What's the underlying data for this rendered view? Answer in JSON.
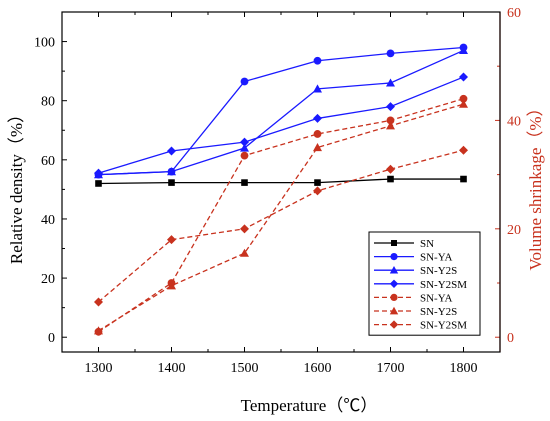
{
  "chart_data": {
    "type": "line",
    "title": "",
    "xlabel": "Temperature（℃）",
    "ylabel_left": "Relative density（%）",
    "ylabel_right": "Volume shrinkage（%）",
    "x": [
      1300,
      1400,
      1500,
      1600,
      1700,
      1800
    ],
    "xlim": [
      1250,
      1850
    ],
    "ylim_left": [
      -5,
      110
    ],
    "ylim_right": [
      -2.727,
      60
    ],
    "xticks": [
      "1300",
      "1400",
      "1500",
      "1600",
      "1700",
      "1800"
    ],
    "yticks_left": [
      "0",
      "20",
      "40",
      "60",
      "80",
      "100"
    ],
    "yticks_right": [
      "0",
      "20",
      "40",
      "60"
    ],
    "grid": false,
    "legend_position": "lower-right",
    "colors": {
      "black": "#000000",
      "blue": "#1a1aff",
      "red": "#c8321e"
    },
    "series": [
      {
        "name": "SN",
        "axis": "left",
        "color": "#000000",
        "marker": "square",
        "dashed": false,
        "values": [
          52,
          52.3,
          52.3,
          52.3,
          53.5,
          53.5
        ]
      },
      {
        "name": "SN-YA",
        "axis": "left",
        "color": "#1a1aff",
        "marker": "circle",
        "dashed": false,
        "values": [
          55,
          56,
          86.5,
          93.5,
          96,
          98
        ]
      },
      {
        "name": "SN-Y2S",
        "axis": "left",
        "color": "#1a1aff",
        "marker": "triangle",
        "dashed": false,
        "values": [
          55,
          56,
          64,
          84,
          86,
          97
        ]
      },
      {
        "name": "SN-Y2SM",
        "axis": "left",
        "color": "#1a1aff",
        "marker": "diamond",
        "dashed": false,
        "values": [
          55.5,
          63,
          66,
          74,
          78,
          88
        ]
      },
      {
        "name": "SN-YA",
        "axis": "right",
        "color": "#c8321e",
        "marker": "circle",
        "dashed": true,
        "values": [
          1,
          10,
          33.5,
          37.5,
          40,
          44
        ]
      },
      {
        "name": "SN-Y2S",
        "axis": "right",
        "color": "#c8321e",
        "marker": "triangle",
        "dashed": true,
        "values": [
          1.2,
          9.5,
          15.5,
          35,
          39,
          43
        ]
      },
      {
        "name": "SN-Y2SM",
        "axis": "right",
        "color": "#c8321e",
        "marker": "diamond",
        "dashed": true,
        "values": [
          6.5,
          18,
          20,
          27,
          31,
          34.5
        ]
      }
    ]
  }
}
